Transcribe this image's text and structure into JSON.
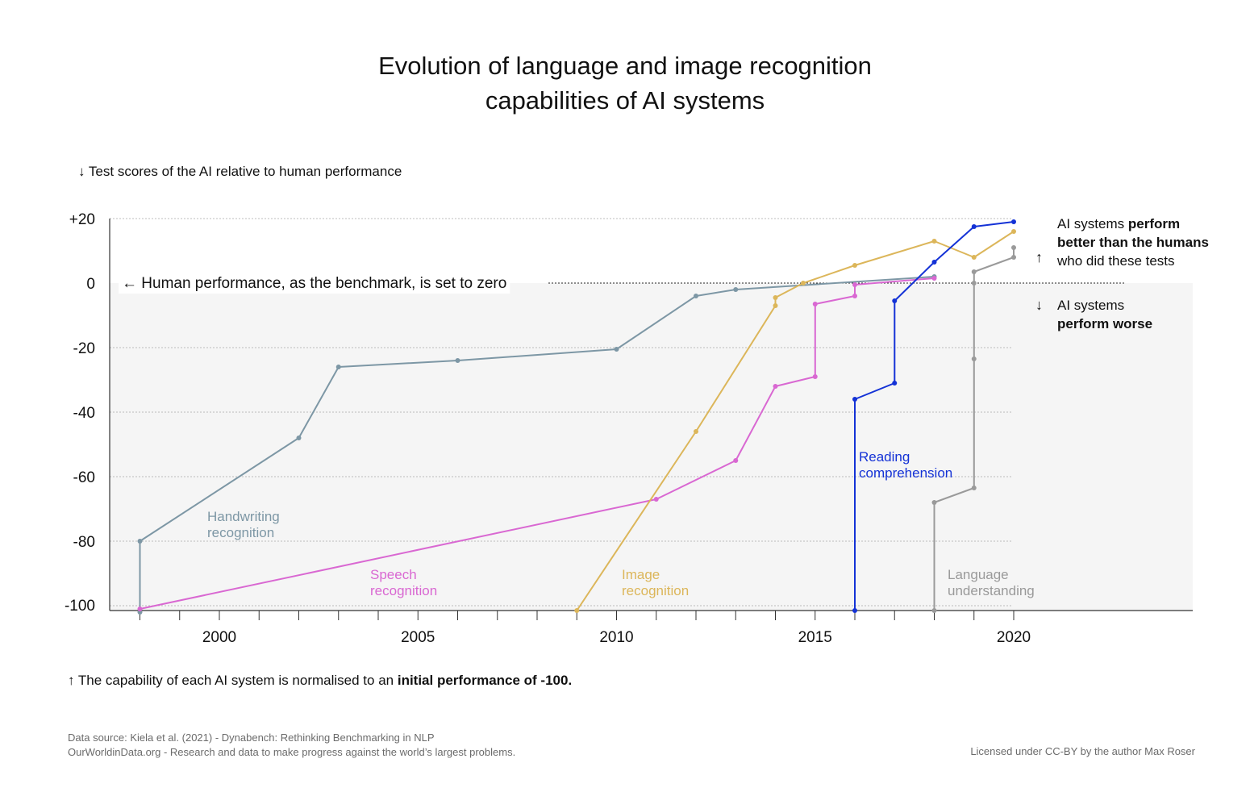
{
  "title_line1": "Evolution of language and image recognition",
  "title_line2": "capabilities of AI systems",
  "y_axis_note": "↓ Test scores of the AI relative to human performance",
  "zero_line_label": "← Human performance, as the benchmark, is set to zero",
  "above_arrow": "↑",
  "above_label_1": "AI systems ",
  "above_label_1b": "perform",
  "above_label_2": "better than the humans",
  "above_label_3": "who did these tests",
  "below_arrow": "↓",
  "below_label_1": "AI systems",
  "below_label_2": "perform worse",
  "bottom_note_1": "↑ The capability of each AI system is normalised to an ",
  "bottom_note_2": "initial performance of -100.",
  "source_line1": "Data source: Kiela et al. (2021) - Dynabench: Rethinking Benchmarking in NLP",
  "source_line2": "OurWorldinData.org - Research and data to make progress against the world’s largest problems.",
  "license": "Licensed under CC-BY by the author Max Roser",
  "chart_data": {
    "type": "line",
    "title": "Evolution of language and image recognition capabilities of AI systems",
    "ylabel": "↓ Test scores of the AI relative to human performance",
    "xlabel": "",
    "xlim": [
      1997.3,
      2024.5
    ],
    "ylim": [
      -102,
      20
    ],
    "x_ticks": [
      2000,
      2005,
      2010,
      2015,
      2020
    ],
    "y_ticks": [
      20,
      0,
      -20,
      -40,
      -60,
      -80,
      -100
    ],
    "y_tick_labels": [
      "+20",
      "0",
      "-20",
      "-40",
      "-60",
      "-80",
      "-100"
    ],
    "grid": true,
    "series": [
      {
        "name": "Handwriting recognition",
        "color": "#7d97a5",
        "x": [
          1998,
          1998,
          2002,
          2003,
          2006,
          2010,
          2012,
          2013,
          2018
        ],
        "y": [
          -102,
          -80,
          -48,
          -26,
          -24,
          -20.5,
          -4,
          -2,
          2
        ]
      },
      {
        "name": "Speech recognition",
        "color": "#d968d2",
        "x": [
          1998,
          2011,
          2013,
          2014,
          2015,
          2015,
          2016,
          2016,
          2018
        ],
        "y": [
          -101,
          -67,
          -55,
          -32,
          -29,
          -6.5,
          -4,
          -0.5,
          1.5
        ]
      },
      {
        "name": "Image recognition",
        "color": "#dcb65a",
        "x": [
          2009,
          2012,
          2014,
          2014,
          2014.7,
          2016,
          2018,
          2019,
          2020
        ],
        "y": [
          -101.5,
          -46,
          -7,
          -4.5,
          0,
          5.5,
          13,
          8,
          16
        ]
      },
      {
        "name": "Reading comprehension",
        "color": "#1432d6",
        "x": [
          2016,
          2016,
          2017,
          2017,
          2018,
          2019,
          2020
        ],
        "y": [
          -101.5,
          -36,
          -31,
          -5.5,
          6.5,
          17.5,
          19
        ]
      },
      {
        "name": "Language understanding",
        "color": "#9a9a9a",
        "x": [
          2018,
          2018,
          2019,
          2019,
          2019,
          2019,
          2020,
          2020
        ],
        "y": [
          -101.5,
          -68,
          -63.5,
          -23.5,
          0,
          3.5,
          8,
          11
        ]
      }
    ],
    "series_labels": [
      {
        "name": "Handwriting recognition",
        "line1": "Handwriting",
        "line2": "recognition"
      },
      {
        "name": "Speech recognition",
        "line1": "Speech",
        "line2": "recognition"
      },
      {
        "name": "Image recognition",
        "line1": "Image",
        "line2": "recognition"
      },
      {
        "name": "Reading comprehension",
        "line1": "Reading",
        "line2": "comprehension"
      },
      {
        "name": "Language understanding",
        "line1": "Language",
        "line2": "understanding"
      }
    ]
  }
}
